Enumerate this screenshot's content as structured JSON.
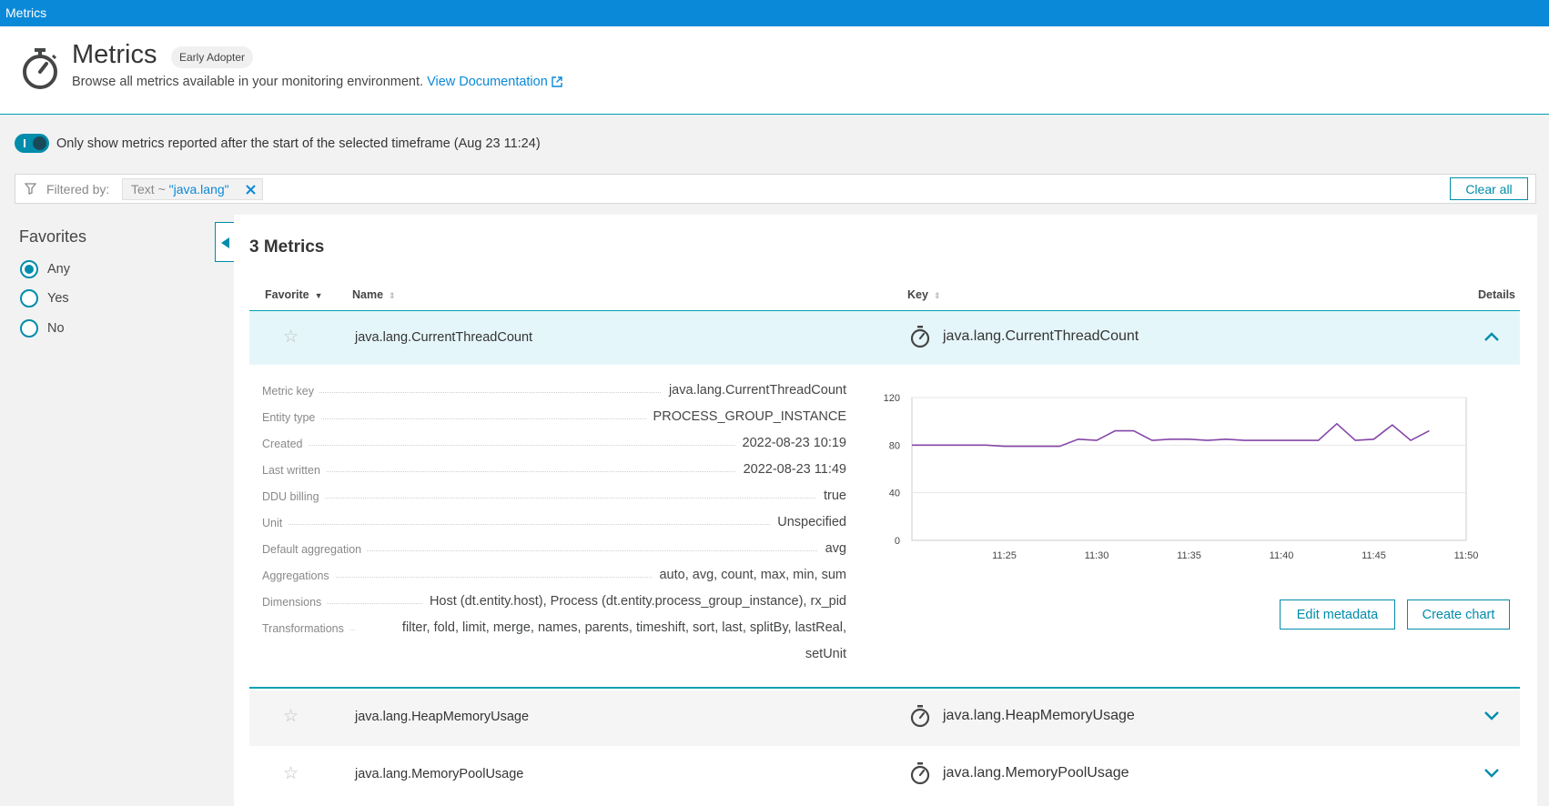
{
  "window": {
    "title": "Metrics"
  },
  "header": {
    "title": "Metrics",
    "badge": "Early Adopter",
    "subtitle": "Browse all metrics available in your monitoring environment.",
    "doc_link": "View Documentation"
  },
  "toggle": {
    "label": "Only show metrics reported after the start of the selected timeframe (Aug 23 11:24)",
    "on": true
  },
  "filter": {
    "label": "Filtered by:",
    "chip_prefix": "Text ~ ",
    "chip_value": "\"java.lang\"",
    "clear_label": "Clear all"
  },
  "sidebar": {
    "title": "Favorites",
    "options": [
      "Any",
      "Yes",
      "No"
    ],
    "selected": "Any"
  },
  "main": {
    "count_title": "3 Metrics",
    "columns": {
      "favorite": "Favorite",
      "name": "Name",
      "key": "Key",
      "details": "Details"
    },
    "rows": [
      {
        "name": "java.lang.CurrentThreadCount",
        "key": "java.lang.CurrentThreadCount",
        "expanded": true
      },
      {
        "name": "java.lang.HeapMemoryUsage",
        "key": "java.lang.HeapMemoryUsage",
        "expanded": false
      },
      {
        "name": "java.lang.MemoryPoolUsage",
        "key": "java.lang.MemoryPoolUsage",
        "expanded": false
      }
    ]
  },
  "details": {
    "properties": [
      {
        "label": "Metric key",
        "value": "java.lang.CurrentThreadCount"
      },
      {
        "label": "Entity type",
        "value": "PROCESS_GROUP_INSTANCE"
      },
      {
        "label": "Created",
        "value": "2022-08-23 10:19"
      },
      {
        "label": "Last written",
        "value": "2022-08-23 11:49"
      },
      {
        "label": "DDU billing",
        "value": "true"
      },
      {
        "label": "Unit",
        "value": "Unspecified"
      },
      {
        "label": "Default aggregation",
        "value": "avg"
      },
      {
        "label": "Aggregations",
        "value": "auto, avg, count, max, min, sum"
      },
      {
        "label": "Dimensions",
        "value": "Host (dt.entity.host), Process (dt.entity.process_group_instance), rx_pid"
      },
      {
        "label": "Transformations",
        "value": "filter, fold, limit, merge, names, parents, timeshift, sort, last, splitBy, lastReal, setUnit"
      }
    ],
    "buttons": {
      "edit": "Edit metadata",
      "create": "Create chart"
    }
  },
  "chart_data": {
    "type": "line",
    "x": [
      "11:20",
      "11:21",
      "11:22",
      "11:23",
      "11:24",
      "11:25",
      "11:26",
      "11:27",
      "11:28",
      "11:29",
      "11:30",
      "11:31",
      "11:32",
      "11:33",
      "11:34",
      "11:35",
      "11:36",
      "11:37",
      "11:38",
      "11:39",
      "11:40",
      "11:41",
      "11:42",
      "11:43",
      "11:44",
      "11:45",
      "11:46",
      "11:47",
      "11:48",
      "11:49"
    ],
    "series": [
      {
        "color": "#8546a8",
        "values": [
          80,
          80,
          80,
          80,
          80,
          79,
          79,
          79,
          79,
          85,
          84,
          92,
          92,
          84,
          85,
          85,
          84,
          85,
          84,
          84,
          84,
          84,
          84,
          98,
          84,
          85,
          97,
          84,
          92,
          null
        ]
      }
    ],
    "x_ticks": [
      "11:25",
      "11:30",
      "11:35",
      "11:40",
      "11:45",
      "11:50"
    ],
    "y_ticks": [
      0,
      40,
      80,
      120
    ],
    "ylim": [
      0,
      120
    ],
    "grid": true
  }
}
